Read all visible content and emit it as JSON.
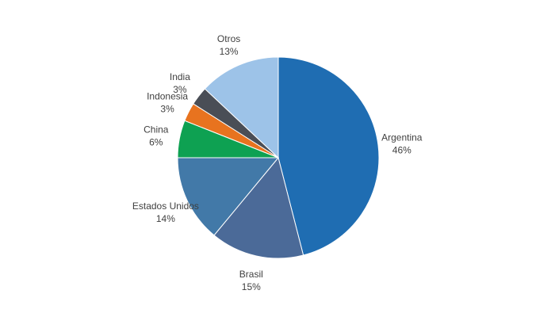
{
  "chart_data": {
    "type": "pie",
    "title": "",
    "start_angle_deg": 0,
    "direction": "clockwise",
    "slices": [
      {
        "name": "Argentina",
        "value": 46,
        "label": "46%",
        "color": "#1f6db2"
      },
      {
        "name": "Brasil",
        "value": 15,
        "label": "15%",
        "color": "#4b6a98"
      },
      {
        "name": "Estados Unidos",
        "value": 14,
        "label": "14%",
        "color": "#4279a8"
      },
      {
        "name": "China",
        "value": 6,
        "label": "6%",
        "color": "#0ea152"
      },
      {
        "name": "Indonesia",
        "value": 3,
        "label": "3%",
        "color": "#e8731f"
      },
      {
        "name": "India",
        "value": 3,
        "label": "3%",
        "color": "#4a4e56"
      },
      {
        "name": "Otros",
        "value": 13,
        "label": "13%",
        "color": "#9dc3e8"
      }
    ]
  }
}
